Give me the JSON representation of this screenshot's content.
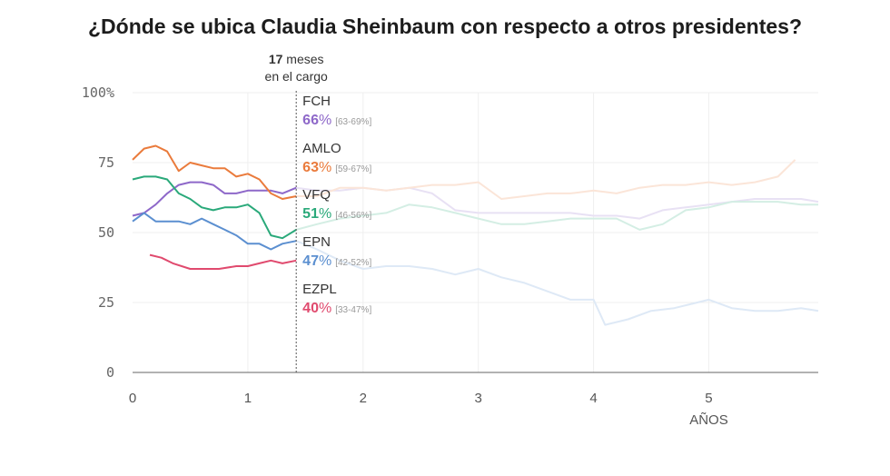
{
  "chart_data": {
    "type": "line",
    "title": "¿Dónde se ubica Claudia Sheinbaum con respecto a otros presidentes?",
    "xlabel": "AÑOS",
    "ylabel": "",
    "xlim": [
      0,
      5.95
    ],
    "ylim": [
      0,
      100
    ],
    "x_ticks": [
      {
        "value": 0,
        "label": "0"
      },
      {
        "value": 1,
        "label": "1"
      },
      {
        "value": 2,
        "label": "2"
      },
      {
        "value": 3,
        "label": "3"
      },
      {
        "value": 4,
        "label": "4"
      },
      {
        "value": 5,
        "label": "5"
      }
    ],
    "y_ticks": [
      {
        "value": 0,
        "label": "0"
      },
      {
        "value": 25,
        "label": "25"
      },
      {
        "value": 50,
        "label": "50"
      },
      {
        "value": 75,
        "label": "75"
      },
      {
        "value": 100,
        "label": "100%"
      }
    ],
    "marker": {
      "x": 1.42,
      "months_value": "17",
      "months_text": "meses",
      "line2": "en el cargo"
    },
    "series": [
      {
        "name": "FCH",
        "color": "#8e68c9",
        "pct": "66",
        "pct_sign": "%",
        "range": "[63-69%]",
        "x": [
          0,
          0.1,
          0.2,
          0.3,
          0.4,
          0.5,
          0.6,
          0.7,
          0.8,
          0.9,
          1.0,
          1.1,
          1.2,
          1.3,
          1.42,
          1.6,
          1.8,
          2.0,
          2.2,
          2.4,
          2.6,
          2.8,
          3.0,
          3.2,
          3.4,
          3.6,
          3.8,
          4.0,
          4.2,
          4.4,
          4.6,
          4.8,
          5.0,
          5.2,
          5.4,
          5.6,
          5.8,
          5.95
        ],
        "values": [
          56,
          57,
          60,
          64,
          67,
          68,
          68,
          67,
          64,
          64,
          65,
          65,
          65,
          64,
          66,
          65,
          65,
          66,
          65,
          66,
          64,
          58,
          57,
          57,
          57,
          57,
          57,
          56,
          56,
          55,
          58,
          59,
          60,
          61,
          62,
          62,
          62,
          61
        ]
      },
      {
        "name": "AMLO",
        "color": "#ea7b3c",
        "pct": "63",
        "pct_sign": "%",
        "range": "[59-67%]",
        "x": [
          0,
          0.1,
          0.2,
          0.3,
          0.4,
          0.5,
          0.6,
          0.7,
          0.8,
          0.9,
          1.0,
          1.1,
          1.2,
          1.3,
          1.42,
          1.6,
          1.8,
          2.0,
          2.2,
          2.4,
          2.6,
          2.8,
          3.0,
          3.2,
          3.4,
          3.6,
          3.8,
          4.0,
          4.2,
          4.4,
          4.6,
          4.8,
          5.0,
          5.2,
          5.4,
          5.6,
          5.75
        ],
        "values": [
          76,
          80,
          81,
          79,
          72,
          75,
          74,
          73,
          73,
          70,
          71,
          69,
          64,
          62,
          63,
          63,
          66,
          66,
          65,
          66,
          67,
          67,
          68,
          62,
          63,
          64,
          64,
          65,
          64,
          66,
          67,
          67,
          68,
          67,
          68,
          70,
          76
        ]
      },
      {
        "name": "VFQ",
        "color": "#2aa97a",
        "pct": "51",
        "pct_sign": "%",
        "range": "[46-56%]",
        "x": [
          0,
          0.1,
          0.2,
          0.3,
          0.4,
          0.5,
          0.6,
          0.7,
          0.8,
          0.9,
          1.0,
          1.1,
          1.2,
          1.3,
          1.42,
          1.6,
          1.8,
          2.0,
          2.2,
          2.4,
          2.6,
          2.8,
          3.0,
          3.2,
          3.4,
          3.6,
          3.8,
          4.0,
          4.2,
          4.4,
          4.6,
          4.8,
          5.0,
          5.2,
          5.4,
          5.6,
          5.8,
          5.95
        ],
        "values": [
          69,
          70,
          70,
          69,
          64,
          62,
          59,
          58,
          59,
          59,
          60,
          57,
          49,
          48,
          51,
          53,
          55,
          56,
          57,
          60,
          59,
          57,
          55,
          53,
          53,
          54,
          55,
          55,
          55,
          51,
          53,
          58,
          59,
          61,
          61,
          61,
          60,
          60
        ]
      },
      {
        "name": "EPN",
        "color": "#5b8fd0",
        "pct": "47",
        "pct_sign": "%",
        "range": "[42-52%]",
        "x": [
          0,
          0.1,
          0.2,
          0.3,
          0.4,
          0.5,
          0.6,
          0.7,
          0.8,
          0.9,
          1.0,
          1.1,
          1.2,
          1.3,
          1.42,
          1.6,
          1.8,
          2.0,
          2.2,
          2.4,
          2.6,
          2.8,
          3.0,
          3.2,
          3.4,
          3.6,
          3.8,
          4.0,
          4.1,
          4.3,
          4.5,
          4.7,
          4.9,
          5.0,
          5.2,
          5.4,
          5.6,
          5.8,
          5.95
        ],
        "values": [
          54,
          57,
          54,
          54,
          54,
          53,
          55,
          53,
          51,
          49,
          46,
          46,
          44,
          46,
          47,
          44,
          40,
          37,
          38,
          38,
          37,
          35,
          37,
          34,
          32,
          29,
          26,
          26,
          17,
          19,
          22,
          23,
          25,
          26,
          23,
          22,
          22,
          23,
          22
        ]
      },
      {
        "name": "EZPL",
        "color": "#e04a6e",
        "pct": "40",
        "pct_sign": "%",
        "range": "[33-47%]",
        "x": [
          0.15,
          0.25,
          0.35,
          0.5,
          0.65,
          0.75,
          0.9,
          1.0,
          1.1,
          1.2,
          1.3,
          1.42
        ],
        "values": [
          42,
          41,
          39,
          37,
          37,
          37,
          38,
          38,
          39,
          40,
          39,
          40
        ]
      }
    ]
  }
}
